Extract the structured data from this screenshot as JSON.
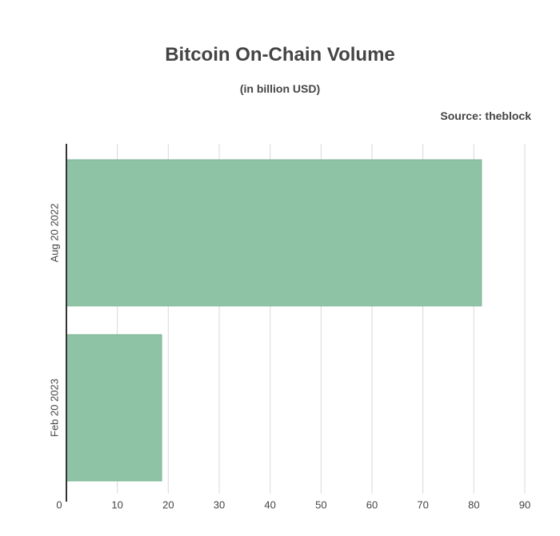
{
  "chart_data": {
    "type": "bar",
    "orientation": "horizontal",
    "title": "Bitcoin On-Chain Volume",
    "subtitle": "(in billion USD)",
    "source": "Source: theblock",
    "categories": [
      "Aug 20 2022",
      "Feb 20 2023"
    ],
    "values": [
      81.5,
      18.7
    ],
    "xlim": [
      0,
      90
    ],
    "xticks": [
      0,
      10,
      20,
      30,
      40,
      50,
      60,
      70,
      80,
      90
    ],
    "grid": true,
    "bar_color": "#8fc3a6"
  }
}
